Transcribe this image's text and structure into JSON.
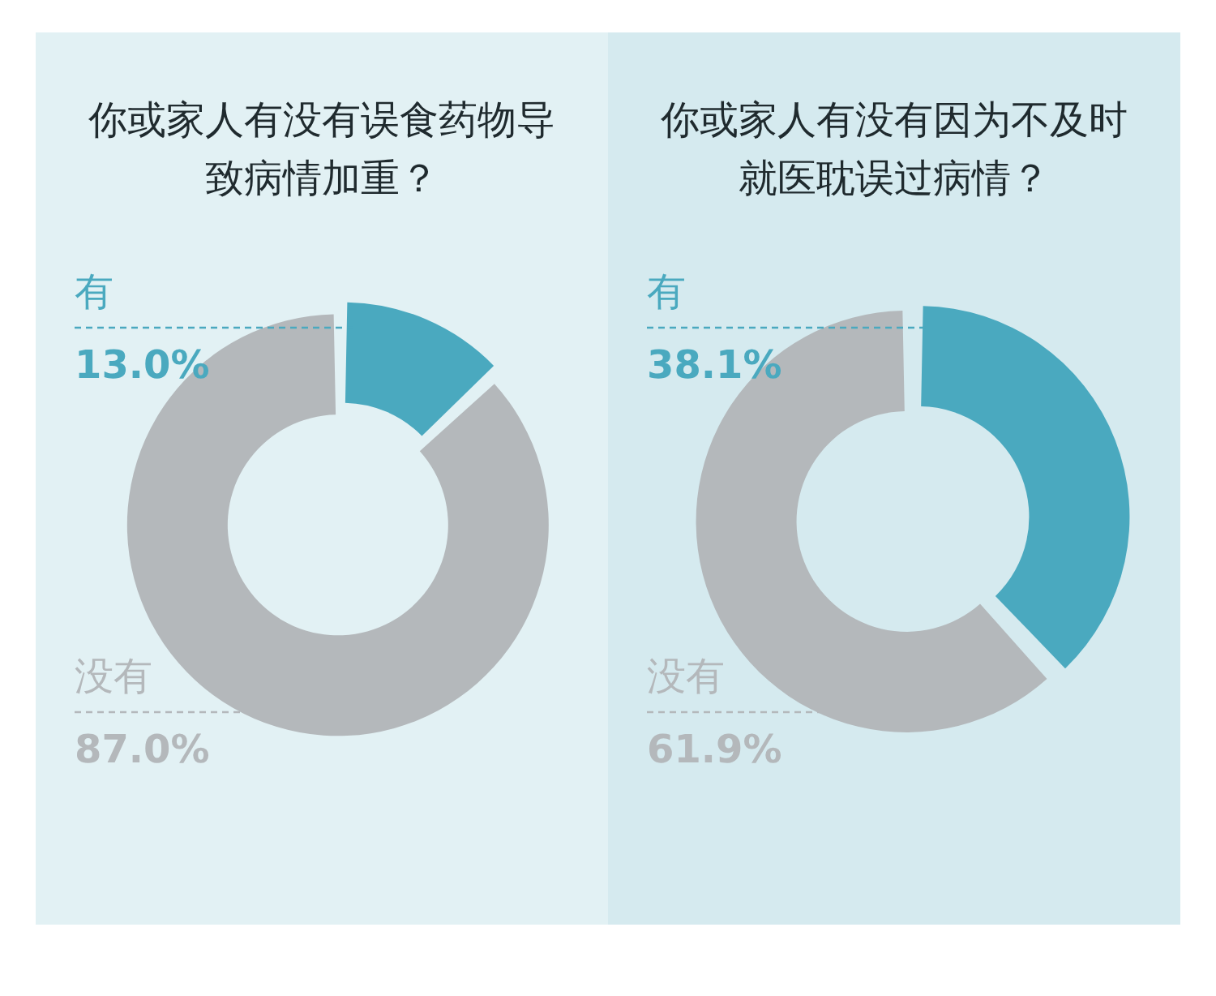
{
  "chart_data": [
    {
      "type": "donut",
      "title": "你或家人有没有误食药物导致病情加重？",
      "categories": [
        "有",
        "没有"
      ],
      "values": [
        13.0,
        87.0
      ],
      "colors": [
        "#4aa9bf",
        "#b4b8bb"
      ],
      "value_labels": [
        "13.0%",
        "87.0%"
      ],
      "legend": false
    },
    {
      "type": "donut",
      "title": "你或家人有没有因为不及时就医耽误过病情？",
      "categories": [
        "有",
        "没有"
      ],
      "values": [
        38.1,
        61.9
      ],
      "colors": [
        "#4aa9bf",
        "#b4b8bb"
      ],
      "value_labels": [
        "38.1%",
        "61.9%"
      ],
      "legend": false
    }
  ]
}
